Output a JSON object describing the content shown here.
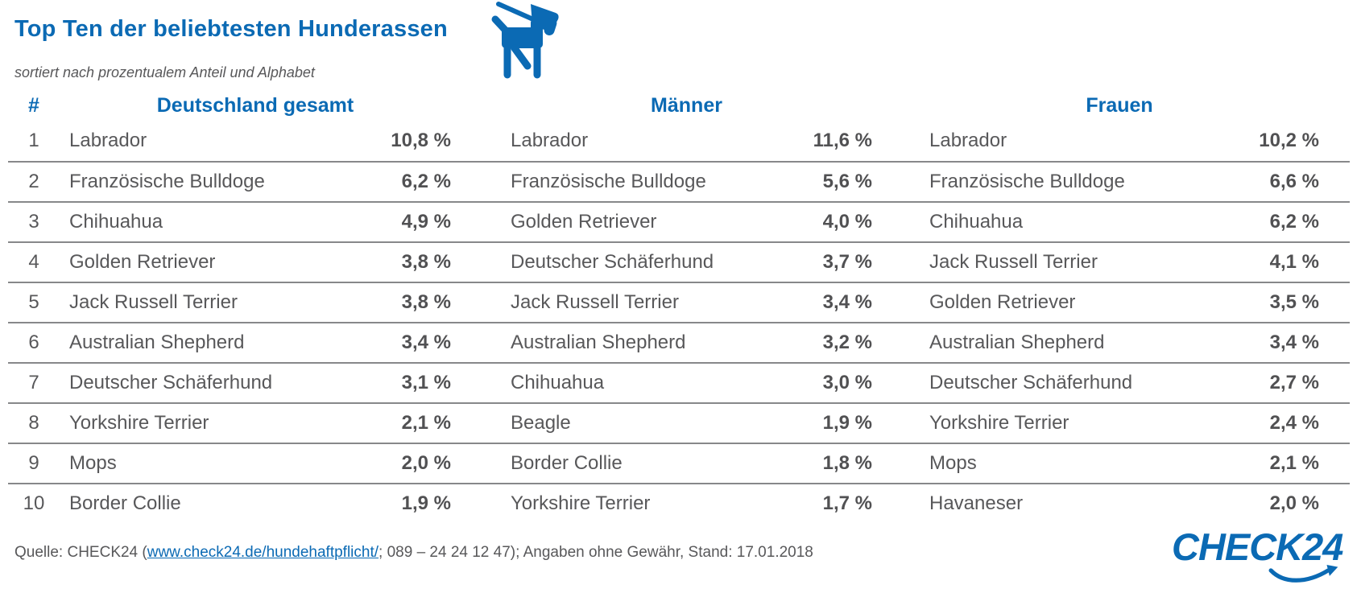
{
  "title": "Top Ten der beliebtesten Hunderassen",
  "subtitle": "sortiert nach prozentualem Anteil und Alphabet",
  "colors": {
    "brand_blue": "#0b6ab4",
    "text_gray": "#58585a",
    "line_gray": "#87888a"
  },
  "icons": {
    "dog": "dog-on-leash-icon"
  },
  "table": {
    "rank_header": "#",
    "ranks": [
      "1",
      "2",
      "3",
      "4",
      "5",
      "6",
      "7",
      "8",
      "9",
      "10"
    ],
    "columns": [
      {
        "label": "Deutschland gesamt",
        "rows": [
          {
            "breed": "Labrador",
            "value": "10,8 %"
          },
          {
            "breed": "Französische Bulldoge",
            "value": "6,2 %"
          },
          {
            "breed": "Chihuahua",
            "value": "4,9 %"
          },
          {
            "breed": "Golden Retriever",
            "value": "3,8 %"
          },
          {
            "breed": "Jack Russell Terrier",
            "value": "3,8 %"
          },
          {
            "breed": "Australian Shepherd",
            "value": "3,4 %"
          },
          {
            "breed": "Deutscher Schäferhund",
            "value": "3,1 %"
          },
          {
            "breed": "Yorkshire Terrier",
            "value": "2,1 %"
          },
          {
            "breed": "Mops",
            "value": "2,0 %"
          },
          {
            "breed": "Border Collie",
            "value": "1,9 %"
          }
        ]
      },
      {
        "label": "Männer",
        "rows": [
          {
            "breed": "Labrador",
            "value": "11,6 %"
          },
          {
            "breed": "Französische Bulldoge",
            "value": "5,6 %"
          },
          {
            "breed": "Golden Retriever",
            "value": "4,0 %"
          },
          {
            "breed": "Deutscher Schäferhund",
            "value": "3,7 %"
          },
          {
            "breed": "Jack Russell Terrier",
            "value": "3,4 %"
          },
          {
            "breed": "Australian Shepherd",
            "value": "3,2 %"
          },
          {
            "breed": "Chihuahua",
            "value": "3,0 %"
          },
          {
            "breed": "Beagle",
            "value": "1,9 %"
          },
          {
            "breed": "Border Collie",
            "value": "1,8 %"
          },
          {
            "breed": "Yorkshire Terrier",
            "value": "1,7 %"
          }
        ]
      },
      {
        "label": "Frauen",
        "rows": [
          {
            "breed": "Labrador",
            "value": "10,2 %"
          },
          {
            "breed": "Französische Bulldoge",
            "value": "6,6 %"
          },
          {
            "breed": "Chihuahua",
            "value": "6,2 %"
          },
          {
            "breed": "Jack Russell Terrier",
            "value": "4,1 %"
          },
          {
            "breed": "Golden Retriever",
            "value": "3,5 %"
          },
          {
            "breed": "Australian Shepherd",
            "value": "3,4 %"
          },
          {
            "breed": "Deutscher Schäferhund",
            "value": "2,7 %"
          },
          {
            "breed": "Yorkshire Terrier",
            "value": "2,4 %"
          },
          {
            "breed": "Mops",
            "value": "2,1 %"
          },
          {
            "breed": "Havaneser",
            "value": "2,0 %"
          }
        ]
      }
    ]
  },
  "footer": {
    "prefix": "Quelle: CHECK24 (",
    "link_text": "www.check24.de/hundehaftpflicht/",
    "suffix": "; 089 – 24 24 12 47); Angaben ohne Gewähr, Stand: 17.01.2018"
  },
  "logo": {
    "text": "CHECK24"
  },
  "chart_data": {
    "type": "table",
    "title": "Top Ten der beliebtesten Hunderassen",
    "subtitle": "sortiert nach prozentualem Anteil und Alphabet",
    "unit": "%",
    "columns": [
      "#",
      "Deutschland gesamt",
      "Männer",
      "Frauen"
    ],
    "series": [
      {
        "name": "Deutschland gesamt",
        "breeds": [
          "Labrador",
          "Französische Bulldoge",
          "Chihuahua",
          "Golden Retriever",
          "Jack Russell Terrier",
          "Australian Shepherd",
          "Deutscher Schäferhund",
          "Yorkshire Terrier",
          "Mops",
          "Border Collie"
        ],
        "values": [
          10.8,
          6.2,
          4.9,
          3.8,
          3.8,
          3.4,
          3.1,
          2.1,
          2.0,
          1.9
        ]
      },
      {
        "name": "Männer",
        "breeds": [
          "Labrador",
          "Französische Bulldoge",
          "Golden Retriever",
          "Deutscher Schäferhund",
          "Jack Russell Terrier",
          "Australian Shepherd",
          "Chihuahua",
          "Beagle",
          "Border Collie",
          "Yorkshire Terrier"
        ],
        "values": [
          11.6,
          5.6,
          4.0,
          3.7,
          3.4,
          3.2,
          3.0,
          1.9,
          1.8,
          1.7
        ]
      },
      {
        "name": "Frauen",
        "breeds": [
          "Labrador",
          "Französische Bulldoge",
          "Chihuahua",
          "Jack Russell Terrier",
          "Golden Retriever",
          "Australian Shepherd",
          "Deutscher Schäferhund",
          "Yorkshire Terrier",
          "Mops",
          "Havaneser"
        ],
        "values": [
          10.2,
          6.6,
          6.2,
          4.1,
          3.5,
          3.4,
          2.7,
          2.4,
          2.1,
          2.0
        ]
      }
    ],
    "source_note": "Quelle: CHECK24 (www.check24.de/hundehaftpflicht/; 089 – 24 24 12 47); Angaben ohne Gewähr, Stand: 17.01.2018"
  }
}
